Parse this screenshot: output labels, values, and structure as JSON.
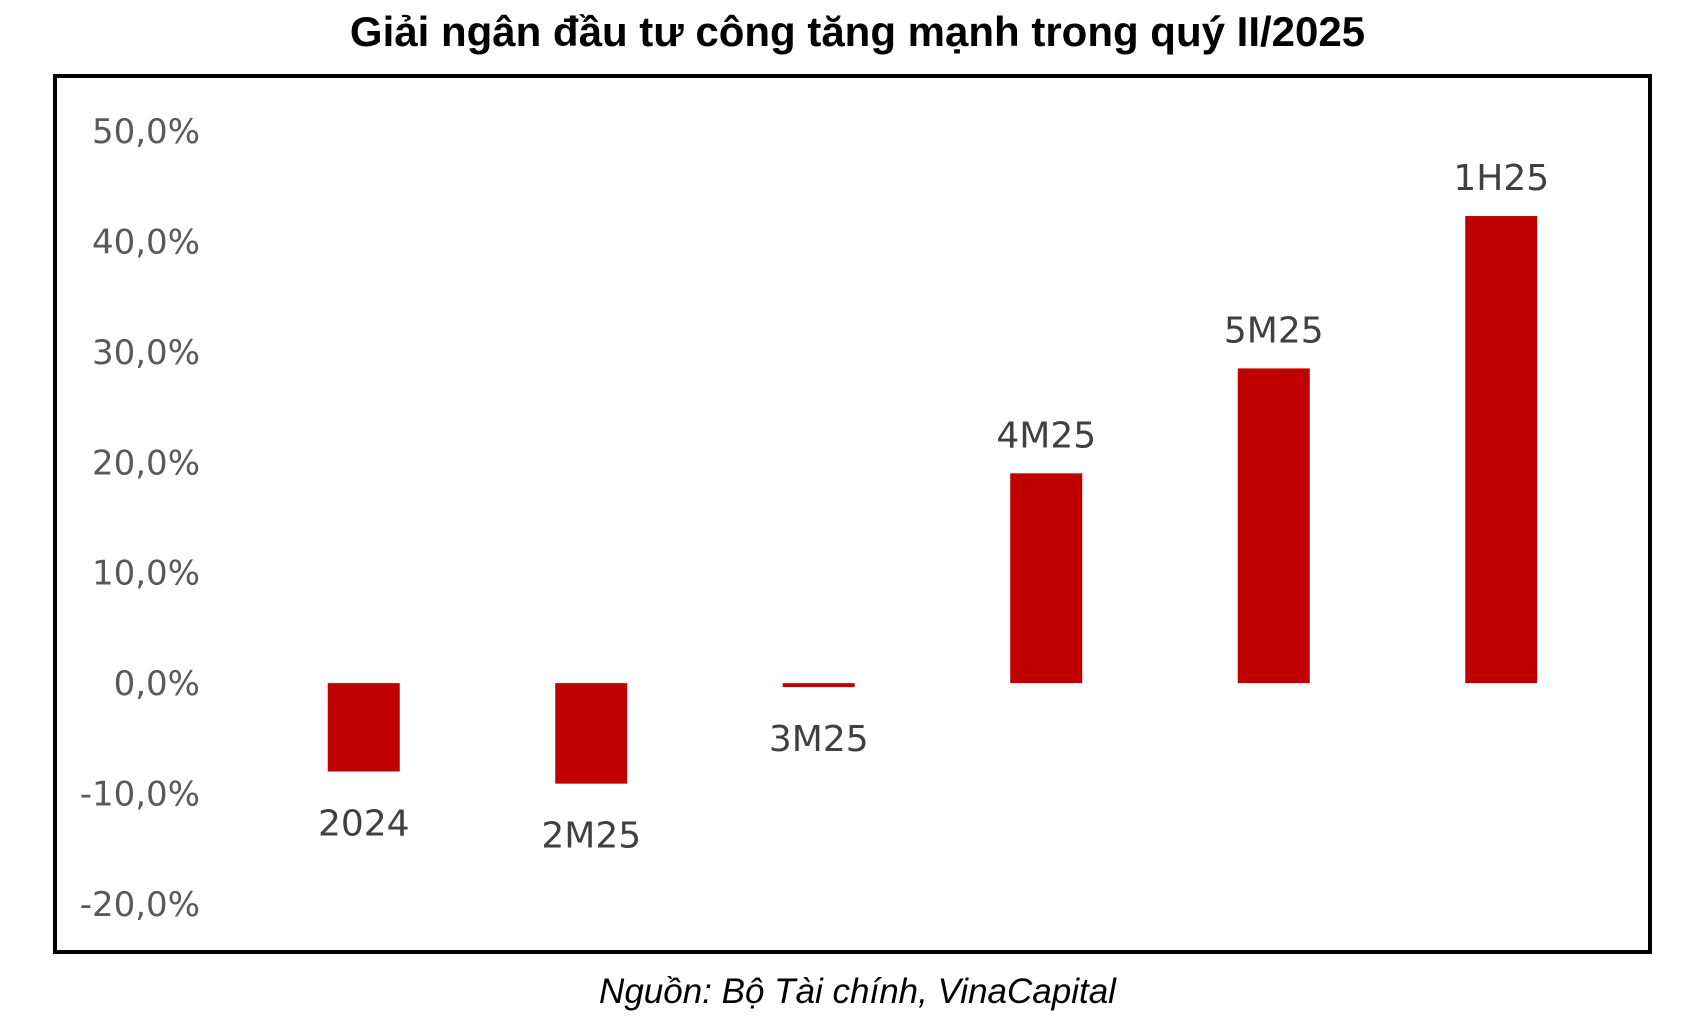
{
  "chart_data": {
    "type": "bar",
    "title": "Giải ngân đầu tư công tăng mạnh trong quý II/2025",
    "source": "Nguồn: Bộ Tài chính, VinaCapital",
    "categories": [
      "2024",
      "2M25",
      "3M25",
      "4M25",
      "5M25",
      "1H25"
    ],
    "values": [
      -8.0,
      -9.1,
      -0.3,
      19.0,
      28.5,
      42.3
    ],
    "data_labels": [
      "2024",
      "2M25",
      "3M25",
      "4M25",
      "5M25",
      "1H25"
    ],
    "y_ticks": [
      "50,0%",
      "40,0%",
      "30,0%",
      "20,0%",
      "10,0%",
      "0,0%",
      "-10,0%",
      "-20,0%"
    ],
    "y_tick_values": [
      50,
      40,
      30,
      20,
      10,
      0,
      -10,
      -20
    ],
    "ylim": [
      -20,
      50
    ],
    "xlabel": "",
    "ylabel": "",
    "grid": false,
    "legend": "none",
    "bar_color": "#C00000",
    "label_color": "#404040",
    "tick_color": "#595959"
  }
}
